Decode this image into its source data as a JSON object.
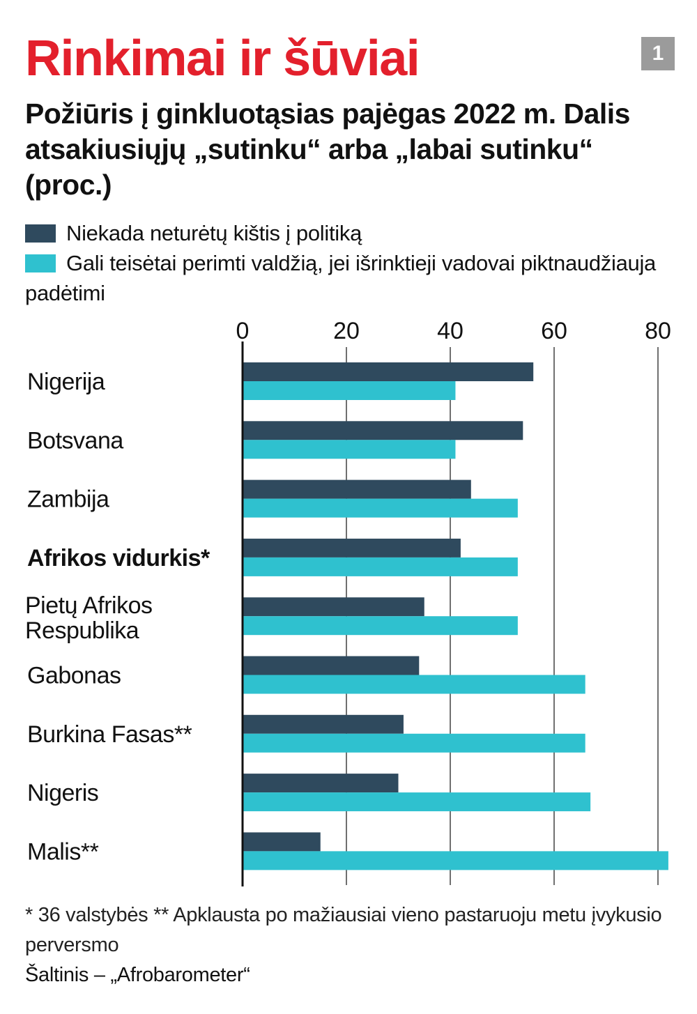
{
  "title": "Rinkimai ir šūviai",
  "badge": "1",
  "subtitle": "Požiūris į ginkluotąsias pajėgas 2022 m. Dalis atsakiusiųjų „sutinku“ arba „labai sutinku“ (proc.)",
  "colors": {
    "title": "#e3202c",
    "series1": "#2f4a5e",
    "series2": "#2fc1cf",
    "badge": "#9b9b9b"
  },
  "footnote": "* 36 valstybės    ** Apklausta po mažiausiai vieno pastaruoju metu įvykusio perversmo",
  "source": "Šaltinis – „Afrobarometer“",
  "chart_data": {
    "type": "bar",
    "orientation": "horizontal",
    "categories": [
      "Nigerija",
      "Botsvana",
      "Zambija",
      "Afrikos vidurkis*",
      "Pietų Afrikos Respublika",
      "Gabonas",
      "Burkina Fasas**",
      "Nigeris",
      "Malis**"
    ],
    "bold_categories": [
      "Afrikos vidurkis*"
    ],
    "series": [
      {
        "name": "Niekada neturėtų kištis į politiką",
        "color": "#2f4a5e",
        "values": [
          56,
          54,
          44,
          42,
          35,
          34,
          31,
          30,
          15
        ]
      },
      {
        "name": "Gali teisėtai perimti valdžią, jei išrinktieji vadovai piktnaudžiauja padėtimi",
        "color": "#2fc1cf",
        "values": [
          41,
          41,
          53,
          53,
          53,
          66,
          66,
          67,
          82
        ]
      }
    ],
    "xlim": [
      0,
      82
    ],
    "xticks": [
      0,
      20,
      40,
      60,
      80
    ],
    "tick_position": "top",
    "grid": true,
    "legend_position": "top"
  }
}
